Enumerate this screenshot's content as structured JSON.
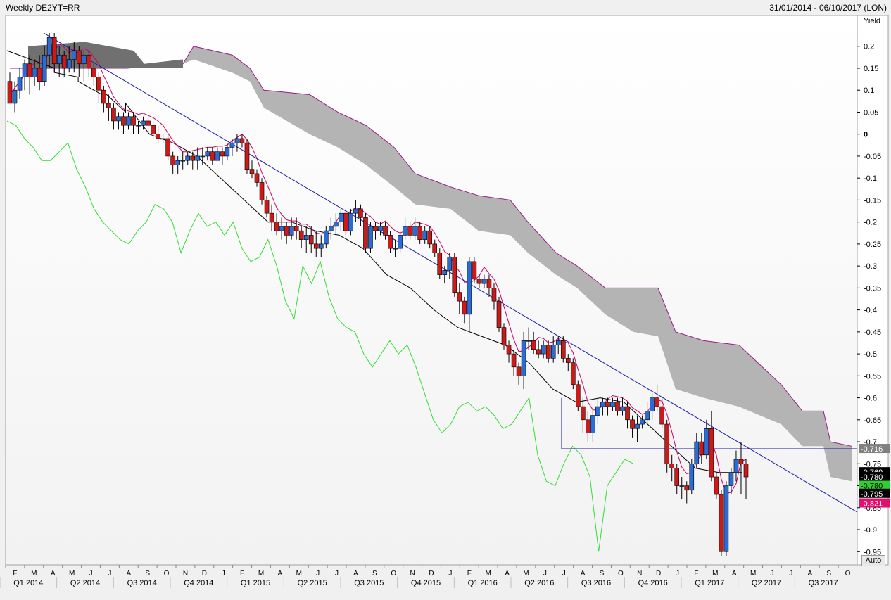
{
  "header": {
    "title": "Weekly DE2YT=RR",
    "date_range": "31/01/2014 - 06/10/2017 (LON)"
  },
  "controls": {
    "auto_label": "Auto"
  },
  "chart_data": {
    "type": "candlestick",
    "ylabel": "Yield",
    "ylim": [
      -0.98,
      0.27
    ],
    "yticks": [
      0.2,
      0.15,
      0.1,
      0.05,
      0,
      -0.05,
      -0.1,
      -0.15,
      -0.2,
      -0.25,
      -0.3,
      -0.35,
      -0.4,
      -0.45,
      -0.5,
      -0.55,
      -0.6,
      -0.65,
      -0.7,
      -0.75,
      -0.8,
      -0.85,
      -0.9,
      -0.95
    ],
    "ytick_labels": [
      "0.2",
      "0.15",
      "0.1",
      "0.05",
      "0",
      "-0.05",
      "-0.1",
      "-0.15",
      "-0.2",
      "-0.25",
      "-0.3",
      "-0.35",
      "-0.4",
      "-0.45",
      "-0.5",
      "-0.55",
      "-0.6",
      "-0.65",
      "-0.7",
      "-0.75",
      "-0.8",
      "-0.85",
      "-0.9",
      "-0.95"
    ],
    "x_range": [
      "2014-01-31",
      "2017-10-06"
    ],
    "months": [
      "F",
      "M",
      "A",
      "M",
      "J",
      "J",
      "A",
      "S",
      "O",
      "N",
      "D",
      "J",
      "F",
      "M",
      "A",
      "M",
      "J",
      "J",
      "A",
      "S",
      "O",
      "N",
      "D",
      "J",
      "F",
      "M",
      "A",
      "M",
      "J",
      "J",
      "A",
      "S",
      "O",
      "N",
      "D",
      "J",
      "F",
      "M",
      "A",
      "M",
      "J",
      "J",
      "A",
      "S",
      "O"
    ],
    "quarters": [
      "Q1 2014",
      "Q2 2014",
      "Q3 2014",
      "Q4 2014",
      "Q1 2015",
      "Q2 2015",
      "Q3 2015",
      "Q4 2015",
      "Q1 2016",
      "Q2 2016",
      "Q3 2016",
      "Q4 2016",
      "Q1 2017",
      "Q2 2017",
      "Q3 2017"
    ],
    "candles": [
      [
        0.12,
        0.07,
        0.14,
        0.07
      ],
      [
        0.07,
        0.1,
        0.12,
        0.05
      ],
      [
        0.1,
        0.13,
        0.15,
        0.08
      ],
      [
        0.13,
        0.16,
        0.17,
        0.1
      ],
      [
        0.16,
        0.13,
        0.18,
        0.09
      ],
      [
        0.13,
        0.15,
        0.17,
        0.11
      ],
      [
        0.15,
        0.12,
        0.18,
        0.1
      ],
      [
        0.12,
        0.18,
        0.2,
        0.11
      ],
      [
        0.18,
        0.22,
        0.23,
        0.15
      ],
      [
        0.22,
        0.16,
        0.23,
        0.14
      ],
      [
        0.16,
        0.18,
        0.2,
        0.13
      ],
      [
        0.18,
        0.15,
        0.19,
        0.13
      ],
      [
        0.15,
        0.17,
        0.2,
        0.14
      ],
      [
        0.17,
        0.19,
        0.21,
        0.14
      ],
      [
        0.19,
        0.16,
        0.2,
        0.13
      ],
      [
        0.16,
        0.18,
        0.19,
        0.12
      ],
      [
        0.18,
        0.15,
        0.19,
        0.13
      ],
      [
        0.15,
        0.13,
        0.16,
        0.11
      ],
      [
        0.13,
        0.1,
        0.14,
        0.07
      ],
      [
        0.1,
        0.07,
        0.11,
        0.05
      ],
      [
        0.07,
        0.06,
        0.09,
        0.03
      ],
      [
        0.06,
        0.03,
        0.07,
        0.01
      ],
      [
        0.03,
        0.04,
        0.05,
        0.01
      ],
      [
        0.04,
        0.02,
        0.05,
        0
      ],
      [
        0.02,
        0.04,
        0.05,
        0.01
      ],
      [
        0.04,
        0.02,
        0.05,
        0
      ],
      [
        0.02,
        0.02,
        0.03,
        0
      ],
      [
        0.02,
        0.03,
        0.04,
        0.01
      ],
      [
        0.03,
        0.02,
        0.04,
        0
      ],
      [
        0.02,
        0.0,
        0.03,
        -0.01
      ],
      [
        0.0,
        -0.01,
        0.02,
        -0.02
      ],
      [
        -0.01,
        -0.01,
        0.0,
        -0.02
      ],
      [
        -0.01,
        -0.05,
        0.0,
        -0.06
      ],
      [
        -0.05,
        -0.07,
        -0.04,
        -0.09
      ],
      [
        -0.07,
        -0.06,
        -0.05,
        -0.09
      ],
      [
        -0.06,
        -0.06,
        -0.04,
        -0.08
      ],
      [
        -0.06,
        -0.05,
        -0.04,
        -0.07
      ],
      [
        -0.05,
        -0.06,
        -0.04,
        -0.08
      ],
      [
        -0.06,
        -0.05,
        -0.03,
        -0.08
      ],
      [
        -0.05,
        -0.05,
        -0.03,
        -0.07
      ],
      [
        -0.05,
        -0.04,
        -0.03,
        -0.06
      ],
      [
        -0.04,
        -0.06,
        -0.03,
        -0.07
      ],
      [
        -0.06,
        -0.04,
        -0.03,
        -0.06
      ],
      [
        -0.04,
        -0.05,
        -0.03,
        -0.07
      ],
      [
        -0.05,
        -0.03,
        -0.02,
        -0.06
      ],
      [
        -0.03,
        -0.02,
        -0.01,
        -0.05
      ],
      [
        -0.02,
        -0.01,
        0.0,
        -0.04
      ],
      [
        -0.01,
        -0.02,
        0.0,
        -0.03
      ],
      [
        -0.02,
        -0.08,
        -0.01,
        -0.09
      ],
      [
        -0.08,
        -0.09,
        -0.06,
        -0.1
      ],
      [
        -0.09,
        -0.11,
        -0.08,
        -0.12
      ],
      [
        -0.11,
        -0.15,
        -0.1,
        -0.16
      ],
      [
        -0.15,
        -0.18,
        -0.14,
        -0.19
      ],
      [
        -0.18,
        -0.2,
        -0.16,
        -0.22
      ],
      [
        -0.2,
        -0.22,
        -0.18,
        -0.23
      ],
      [
        -0.22,
        -0.21,
        -0.19,
        -0.24
      ],
      [
        -0.21,
        -0.23,
        -0.2,
        -0.25
      ],
      [
        -0.23,
        -0.21,
        -0.19,
        -0.24
      ],
      [
        -0.21,
        -0.22,
        -0.19,
        -0.24
      ],
      [
        -0.22,
        -0.24,
        -0.21,
        -0.26
      ],
      [
        -0.24,
        -0.23,
        -0.21,
        -0.27
      ],
      [
        -0.23,
        -0.25,
        -0.21,
        -0.27
      ],
      [
        -0.25,
        -0.26,
        -0.22,
        -0.28
      ],
      [
        -0.26,
        -0.25,
        -0.23,
        -0.28
      ],
      [
        -0.25,
        -0.22,
        -0.21,
        -0.26
      ],
      [
        -0.22,
        -0.21,
        -0.19,
        -0.24
      ],
      [
        -0.21,
        -0.2,
        -0.18,
        -0.23
      ],
      [
        -0.2,
        -0.18,
        -0.17,
        -0.22
      ],
      [
        -0.18,
        -0.22,
        -0.17,
        -0.23
      ],
      [
        -0.22,
        -0.18,
        -0.17,
        -0.23
      ],
      [
        -0.18,
        -0.17,
        -0.15,
        -0.2
      ],
      [
        -0.17,
        -0.19,
        -0.16,
        -0.21
      ],
      [
        -0.19,
        -0.26,
        -0.18,
        -0.27
      ],
      [
        -0.26,
        -0.21,
        -0.2,
        -0.27
      ],
      [
        -0.21,
        -0.22,
        -0.2,
        -0.24
      ],
      [
        -0.22,
        -0.21,
        -0.2,
        -0.23
      ],
      [
        -0.21,
        -0.23,
        -0.2,
        -0.24
      ],
      [
        -0.23,
        -0.26,
        -0.22,
        -0.27
      ],
      [
        -0.26,
        -0.26,
        -0.24,
        -0.28
      ],
      [
        -0.26,
        -0.23,
        -0.22,
        -0.27
      ],
      [
        -0.23,
        -0.21,
        -0.19,
        -0.24
      ],
      [
        -0.21,
        -0.23,
        -0.2,
        -0.24
      ],
      [
        -0.23,
        -0.21,
        -0.19,
        -0.24
      ],
      [
        -0.21,
        -0.24,
        -0.2,
        -0.25
      ],
      [
        -0.24,
        -0.22,
        -0.21,
        -0.25
      ],
      [
        -0.22,
        -0.25,
        -0.21,
        -0.26
      ],
      [
        -0.25,
        -0.27,
        -0.24,
        -0.28
      ],
      [
        -0.27,
        -0.32,
        -0.26,
        -0.33
      ],
      [
        -0.32,
        -0.31,
        -0.3,
        -0.34
      ],
      [
        -0.31,
        -0.28,
        -0.27,
        -0.33
      ],
      [
        -0.28,
        -0.36,
        -0.27,
        -0.37
      ],
      [
        -0.36,
        -0.38,
        -0.34,
        -0.41
      ],
      [
        -0.38,
        -0.41,
        -0.37,
        -0.43
      ],
      [
        -0.41,
        -0.29,
        -0.28,
        -0.45
      ],
      [
        -0.29,
        -0.33,
        -0.28,
        -0.34
      ],
      [
        -0.33,
        -0.34,
        -0.32,
        -0.35
      ],
      [
        -0.34,
        -0.33,
        -0.32,
        -0.35
      ],
      [
        -0.33,
        -0.35,
        -0.32,
        -0.37
      ],
      [
        -0.35,
        -0.38,
        -0.34,
        -0.4
      ],
      [
        -0.38,
        -0.44,
        -0.37,
        -0.45
      ],
      [
        -0.44,
        -0.48,
        -0.43,
        -0.49
      ],
      [
        -0.48,
        -0.5,
        -0.47,
        -0.52
      ],
      [
        -0.5,
        -0.53,
        -0.49,
        -0.55
      ],
      [
        -0.53,
        -0.55,
        -0.52,
        -0.57
      ],
      [
        -0.55,
        -0.47,
        -0.45,
        -0.58
      ],
      [
        -0.47,
        -0.47,
        -0.44,
        -0.49
      ],
      [
        -0.47,
        -0.49,
        -0.45,
        -0.5
      ],
      [
        -0.49,
        -0.5,
        -0.47,
        -0.51
      ],
      [
        -0.5,
        -0.48,
        -0.47,
        -0.51
      ],
      [
        -0.48,
        -0.51,
        -0.47,
        -0.52
      ],
      [
        -0.51,
        -0.48,
        -0.46,
        -0.52
      ],
      [
        -0.48,
        -0.47,
        -0.46,
        -0.5
      ],
      [
        -0.47,
        -0.51,
        -0.46,
        -0.52
      ],
      [
        -0.51,
        -0.52,
        -0.5,
        -0.54
      ],
      [
        -0.52,
        -0.57,
        -0.51,
        -0.58
      ],
      [
        -0.57,
        -0.62,
        -0.56,
        -0.63
      ],
      [
        -0.62,
        -0.65,
        -0.6,
        -0.68
      ],
      [
        -0.65,
        -0.68,
        -0.63,
        -0.7
      ],
      [
        -0.68,
        -0.64,
        -0.62,
        -0.7
      ],
      [
        -0.64,
        -0.62,
        -0.6,
        -0.66
      ],
      [
        -0.62,
        -0.61,
        -0.6,
        -0.64
      ],
      [
        -0.61,
        -0.62,
        -0.6,
        -0.64
      ],
      [
        -0.62,
        -0.61,
        -0.6,
        -0.63
      ],
      [
        -0.61,
        -0.63,
        -0.6,
        -0.64
      ],
      [
        -0.63,
        -0.62,
        -0.6,
        -0.64
      ],
      [
        -0.62,
        -0.65,
        -0.61,
        -0.67
      ],
      [
        -0.65,
        -0.67,
        -0.64,
        -0.69
      ],
      [
        -0.67,
        -0.66,
        -0.64,
        -0.7
      ],
      [
        -0.66,
        -0.65,
        -0.64,
        -0.67
      ],
      [
        -0.65,
        -0.63,
        -0.61,
        -0.66
      ],
      [
        -0.63,
        -0.6,
        -0.59,
        -0.65
      ],
      [
        -0.6,
        -0.62,
        -0.57,
        -0.63
      ],
      [
        -0.62,
        -0.66,
        -0.6,
        -0.67
      ],
      [
        -0.66,
        -0.75,
        -0.65,
        -0.77
      ],
      [
        -0.75,
        -0.76,
        -0.73,
        -0.79
      ],
      [
        -0.76,
        -0.8,
        -0.75,
        -0.82
      ],
      [
        -0.8,
        -0.8,
        -0.78,
        -0.83
      ],
      [
        -0.8,
        -0.81,
        -0.79,
        -0.84
      ],
      [
        -0.81,
        -0.75,
        -0.74,
        -0.82
      ],
      [
        -0.75,
        -0.7,
        -0.68,
        -0.76
      ],
      [
        -0.7,
        -0.73,
        -0.68,
        -0.75
      ],
      [
        -0.73,
        -0.67,
        -0.65,
        -0.74
      ],
      [
        -0.67,
        -0.78,
        -0.63,
        -0.79
      ],
      [
        -0.78,
        -0.82,
        -0.77,
        -0.83
      ],
      [
        -0.82,
        -0.95,
        -0.81,
        -0.96
      ],
      [
        -0.95,
        -0.8,
        -0.79,
        -0.96
      ],
      [
        -0.8,
        -0.77,
        -0.76,
        -0.82
      ],
      [
        -0.77,
        -0.74,
        -0.72,
        -0.79
      ],
      [
        -0.74,
        -0.75,
        -0.7,
        -0.82
      ],
      [
        -0.75,
        -0.78,
        -0.74,
        -0.83
      ]
    ],
    "ichimoku": {
      "kijun": [
        [
          0.19,
          0.17
        ],
        [
          0.17,
          0.15
        ],
        [
          0.14,
          0.13
        ],
        [
          0.12,
          0.09
        ],
        [
          0.1,
          0.05
        ],
        [
          0.07,
          0.0
        ],
        [
          0.0,
          -0.02
        ],
        [
          -0.02,
          -0.05
        ],
        [
          -0.05,
          -0.1
        ],
        [
          -0.1,
          -0.15
        ],
        [
          -0.15,
          -0.2
        ],
        [
          -0.2,
          -0.2
        ],
        [
          -0.2,
          -0.22
        ],
        [
          -0.22,
          -0.23
        ],
        [
          -0.23,
          -0.26
        ],
        [
          -0.26,
          -0.32
        ],
        [
          -0.32,
          -0.35
        ],
        [
          -0.35,
          -0.4
        ],
        [
          -0.4,
          -0.44
        ],
        [
          -0.44,
          -0.46
        ],
        [
          -0.46,
          -0.48
        ],
        [
          -0.48,
          -0.52
        ],
        [
          -0.52,
          -0.58
        ],
        [
          -0.58,
          -0.61
        ],
        [
          -0.61,
          -0.6
        ],
        [
          -0.6,
          -0.61
        ],
        [
          -0.61,
          -0.66
        ],
        [
          -0.66,
          -0.71
        ],
        [
          -0.71,
          -0.76
        ],
        [
          -0.76,
          -0.77
        ],
        [
          -0.77,
          -0.77
        ]
      ]
    },
    "tags": [
      {
        "value": "-0.716",
        "y": -0.716,
        "bg": "#808080",
        "fg": "#ffffff"
      },
      {
        "value": "-0.769",
        "y": -0.769,
        "bg": "#000000",
        "fg": "#ffffff"
      },
      {
        "value": "-0.780",
        "y": -0.78,
        "bg": "#000000",
        "fg": "#ffffff",
        "bold": true
      },
      {
        "value": "-0.780",
        "y": -0.8,
        "bg": "#33cc33",
        "fg": "#000000"
      },
      {
        "value": "-0.795",
        "y": -0.818,
        "bg": "#000000",
        "fg": "#ffffff"
      },
      {
        "value": "-0.821",
        "y": -0.84,
        "bg": "#e0106e",
        "fg": "#ffffff"
      }
    ],
    "colors": {
      "up": "#2a6bd4",
      "down": "#cc1a1a",
      "tenkan": "#cc0066",
      "kijun": "#000000",
      "chikou": "#33dd33",
      "cloud": "#b4b4b4",
      "cloud_dark": "#707070",
      "span_edge": "#9a1a8a",
      "trend": "#1a1aaa",
      "support": "#1a1aaa"
    },
    "grid": false
  }
}
